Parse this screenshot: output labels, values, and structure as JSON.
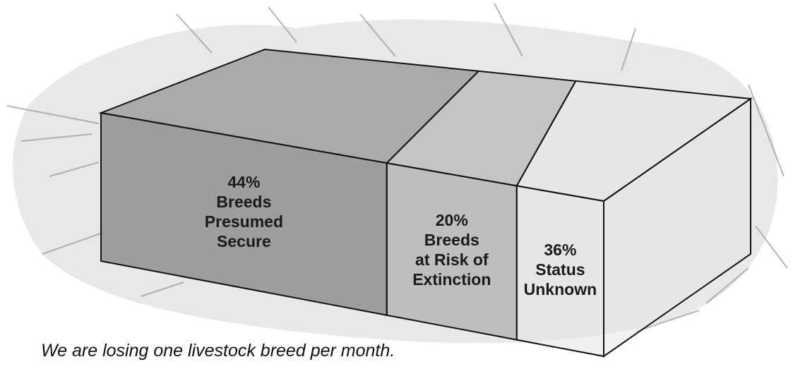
{
  "chart_data": {
    "type": "bale",
    "categories": [
      [
        "Breeds",
        "Presumed",
        "Secure"
      ],
      [
        "Breeds",
        "at Risk of",
        "Extinction"
      ],
      [
        "Status",
        "Unknown"
      ]
    ],
    "values": [
      44,
      20,
      36
    ],
    "value_labels": [
      "44%",
      "20%",
      "36%"
    ],
    "colors": [
      "#5f5f5f",
      "#9a9a9a",
      "#e4e4e4"
    ],
    "caption": "We are losing one livestock breed per month."
  }
}
